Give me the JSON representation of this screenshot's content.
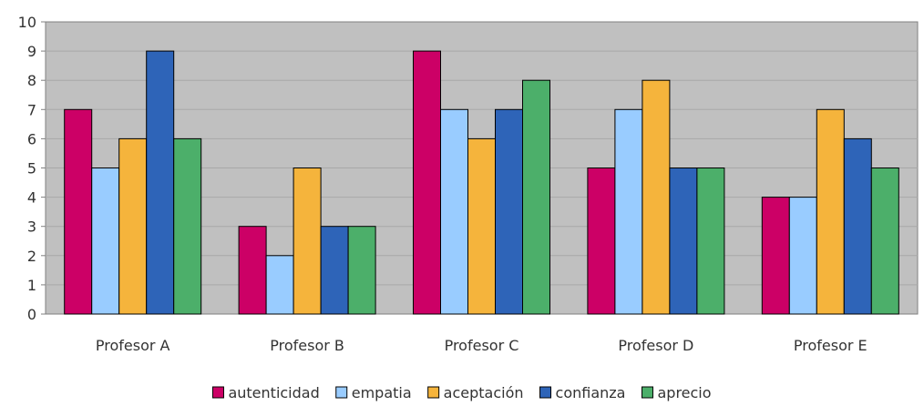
{
  "chart_data": {
    "type": "bar",
    "categories": [
      "Profesor A",
      "Profesor B",
      "Profesor C",
      "Profesor D",
      "Profesor E"
    ],
    "series": [
      {
        "name": "autenticidad",
        "color": "#cc0066",
        "values": [
          7,
          3,
          9,
          5,
          4
        ]
      },
      {
        "name": "empatia",
        "color": "#99ccff",
        "values": [
          5,
          2,
          7,
          7,
          4
        ]
      },
      {
        "name": "aceptación",
        "color": "#f5b43c",
        "values": [
          6,
          5,
          6,
          8,
          7
        ]
      },
      {
        "name": "confianza",
        "color": "#2e64b8",
        "values": [
          9,
          3,
          7,
          5,
          6
        ]
      },
      {
        "name": "aprecio",
        "color": "#4caf6a",
        "values": [
          6,
          3,
          8,
          5,
          5
        ]
      }
    ],
    "ylim": [
      0,
      10
    ],
    "yticks": [
      "0",
      "1",
      "2",
      "3",
      "4",
      "5",
      "6",
      "7",
      "8",
      "9",
      "10"
    ],
    "grid": true,
    "legend_position": "bottom",
    "plot_background": "#c0c0c0",
    "grid_color": "#a8a8a8"
  }
}
